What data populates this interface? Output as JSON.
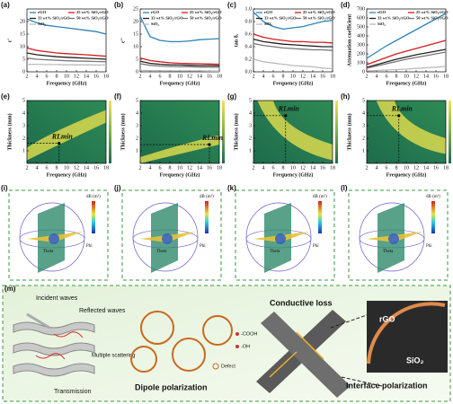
{
  "chart_data": [
    {
      "type": "line",
      "panel": "(a)",
      "xlabel": "Frequency (GHz)",
      "ylabel": "ε'",
      "x": [
        2,
        4,
        6,
        8,
        10,
        12,
        14,
        16,
        18
      ],
      "xlim": [
        2,
        18
      ],
      "xticks": [
        2,
        4,
        6,
        8,
        10,
        12,
        14,
        16,
        18
      ],
      "ylim": [
        0,
        25
      ],
      "yticks": [
        0,
        5,
        10,
        15,
        20
      ],
      "series": [
        {
          "name": "rGO",
          "color": "#2b83ba",
          "values": [
            21,
            19.5,
            18.5,
            18,
            17.5,
            17,
            16.5,
            16,
            15
          ]
        },
        {
          "name": "25 wt% SiO₂/rGO",
          "color": "#d7191c",
          "values": [
            9.5,
            8.5,
            8,
            7.5,
            7.2,
            7,
            6.8,
            6.5,
            6.2
          ]
        },
        {
          "name": "33 wt% SiO₂/rGO",
          "color": "#222222",
          "values": [
            7.5,
            6.8,
            6.4,
            6,
            5.8,
            5.6,
            5.4,
            5.2,
            5
          ]
        },
        {
          "name": "50 wt% SiO₂/rGO",
          "color": "#777777",
          "values": [
            5.5,
            5,
            4.8,
            4.6,
            4.4,
            4.3,
            4.2,
            4.1,
            4
          ]
        },
        {
          "name": "SiO₂",
          "color": "#bbbbbb",
          "values": [
            3,
            3,
            2.9,
            2.9,
            2.8,
            2.8,
            2.8,
            2.7,
            2.7
          ]
        }
      ]
    },
    {
      "type": "line",
      "panel": "(b)",
      "xlabel": "Frequency (GHz)",
      "ylabel": "ε''",
      "x": [
        2,
        4,
        6,
        8,
        10,
        12,
        14,
        16,
        18
      ],
      "xlim": [
        2,
        18
      ],
      "xticks": [
        2,
        4,
        6,
        8,
        10,
        12,
        14,
        16,
        18
      ],
      "ylim": [
        0,
        25
      ],
      "yticks": [
        0,
        5,
        10,
        15,
        20,
        25
      ],
      "series": [
        {
          "name": "rGO",
          "color": "#2b83ba",
          "values": [
            22,
            14,
            12.5,
            12,
            12,
            12.3,
            12.8,
            13,
            13.2
          ]
        },
        {
          "name": "25 wt% SiO₂/rGO",
          "color": "#d7191c",
          "values": [
            5.5,
            4.5,
            4,
            3.6,
            3.4,
            3.3,
            3.2,
            3.1,
            3
          ]
        },
        {
          "name": "33 wt% SiO₂/rGO",
          "color": "#222222",
          "values": [
            4.2,
            3.4,
            3,
            2.8,
            2.7,
            2.6,
            2.5,
            2.5,
            2.4
          ]
        },
        {
          "name": "50 wt% SiO₂/rGO",
          "color": "#777777",
          "values": [
            3.2,
            2.6,
            2.3,
            2.1,
            2,
            2,
            1.9,
            1.9,
            1.8
          ]
        },
        {
          "name": "SiO₂",
          "color": "#bbbbbb",
          "values": [
            0.6,
            0.5,
            0.5,
            0.4,
            0.4,
            0.4,
            0.4,
            0.3,
            0.3
          ]
        }
      ]
    },
    {
      "type": "line",
      "panel": "(c)",
      "xlabel": "Frequency (GHz)",
      "ylabel": "tan δₑ",
      "x": [
        2,
        4,
        6,
        8,
        10,
        12,
        14,
        16,
        18
      ],
      "xlim": [
        2,
        18
      ],
      "xticks": [
        2,
        4,
        6,
        8,
        10,
        12,
        14,
        16,
        18
      ],
      "ylim": [
        0,
        1
      ],
      "yticks": [
        {
          "value": 0,
          "label": "0.0"
        },
        0.2,
        0.4,
        0.6,
        0.8,
        {
          "value": 1,
          "label": "1.0"
        }
      ],
      "series": [
        {
          "name": "rGO",
          "color": "#2b83ba",
          "values": [
            0.95,
            0.8,
            0.72,
            0.68,
            0.7,
            0.72,
            0.76,
            0.8,
            0.82
          ]
        },
        {
          "name": "25 wt% SiO₂/rGO",
          "color": "#d7191c",
          "values": [
            0.6,
            0.55,
            0.52,
            0.5,
            0.48,
            0.48,
            0.47,
            0.47,
            0.46
          ]
        },
        {
          "name": "33 wt% SiO₂/rGO",
          "color": "#222222",
          "values": [
            0.52,
            0.48,
            0.46,
            0.44,
            0.43,
            0.42,
            0.41,
            0.4,
            0.4
          ]
        },
        {
          "name": "50 wt% SiO₂/rGO",
          "color": "#777777",
          "values": [
            0.45,
            0.42,
            0.4,
            0.38,
            0.37,
            0.36,
            0.35,
            0.35,
            0.34
          ]
        },
        {
          "name": "SiO₂",
          "color": "#bbbbbb",
          "values": [
            0.2,
            0.16,
            0.14,
            0.12,
            0.1,
            0.09,
            0.08,
            0.06,
            0.05
          ]
        }
      ]
    },
    {
      "type": "line",
      "panel": "(d)",
      "xlabel": "Frequency (GHz)",
      "ylabel": "Attenuation coefficient",
      "x": [
        2,
        4,
        6,
        8,
        10,
        12,
        14,
        16,
        18
      ],
      "xlim": [
        2,
        18
      ],
      "xticks": [
        2,
        4,
        6,
        8,
        10,
        12,
        14,
        16,
        18
      ],
      "ylim": [
        0,
        700
      ],
      "yticks": [
        0,
        100,
        200,
        300,
        400,
        500,
        600,
        700
      ],
      "series": [
        {
          "name": "rGO",
          "color": "#2b83ba",
          "values": [
            150,
            220,
            290,
            350,
            410,
            470,
            530,
            590,
            650
          ]
        },
        {
          "name": "25 wt% SiO₂/rGO",
          "color": "#d7191c",
          "values": [
            80,
            120,
            160,
            200,
            230,
            260,
            290,
            320,
            350
          ]
        },
        {
          "name": "33 wt% SiO₂/rGO",
          "color": "#222222",
          "values": [
            50,
            80,
            110,
            140,
            165,
            190,
            210,
            230,
            250
          ]
        },
        {
          "name": "50 wt% SiO₂/rGO",
          "color": "#777777",
          "values": [
            40,
            65,
            90,
            115,
            140,
            160,
            180,
            200,
            220
          ]
        },
        {
          "name": "SiO₂",
          "color": "#bbbbbb",
          "values": [
            10,
            15,
            20,
            25,
            30,
            38,
            45,
            52,
            60
          ]
        }
      ]
    },
    {
      "type": "heatmap",
      "panel": "(e)",
      "xlabel": "Frequency (GHz)",
      "ylabel": "Thickness (mm)",
      "xlim": [
        2,
        18
      ],
      "xticks": [
        2,
        4,
        6,
        8,
        10,
        12,
        14,
        16,
        18
      ],
      "ylim": [
        0,
        5
      ],
      "yticks": [
        1,
        2,
        3,
        4,
        5
      ],
      "marker": {
        "label": "RLmin",
        "x": 8.5,
        "y": 1.6
      }
    },
    {
      "type": "heatmap",
      "panel": "(f)",
      "xlabel": "Frequency (GHz)",
      "ylabel": "Thickness (mm)",
      "xlim": [
        2,
        18
      ],
      "xticks": [
        2,
        4,
        6,
        8,
        10,
        12,
        14,
        16,
        18
      ],
      "ylim": [
        0,
        5
      ],
      "yticks": [
        1,
        2,
        3,
        4,
        5
      ],
      "marker": {
        "label": "RLmin",
        "x": 16,
        "y": 1.5
      }
    },
    {
      "type": "heatmap",
      "panel": "(g)",
      "xlabel": "Frequency (GHz)",
      "ylabel": "Thickness (mm)",
      "xlim": [
        2,
        18
      ],
      "xticks": [
        2,
        4,
        6,
        8,
        10,
        12,
        14,
        16,
        18
      ],
      "ylim": [
        0,
        5
      ],
      "yticks": [
        1,
        2,
        3,
        4,
        5
      ],
      "marker": {
        "label": "RLmin",
        "x": 8.5,
        "y": 3.8
      }
    },
    {
      "type": "heatmap",
      "panel": "(h)",
      "xlabel": "Frequency (GHz)",
      "ylabel": "Thickness (mm)",
      "xlim": [
        2,
        18
      ],
      "xticks": [
        2,
        4,
        6,
        8,
        10,
        12,
        14,
        16,
        18
      ],
      "ylim": [
        0,
        5
      ],
      "yticks": [
        1,
        2,
        3,
        4,
        5
      ],
      "marker": {
        "label": "RLmin",
        "x": 8.5,
        "y": 3.8
      }
    }
  ],
  "rcs": {
    "panels": [
      "(i)",
      "(j)",
      "(k)",
      "(l)"
    ],
    "unit": "dB (m²)",
    "theta": "Theta",
    "phi": "Phi"
  },
  "mechanism": {
    "panel": "(m)",
    "incident": "Incident waves",
    "reflected": "Reflected waves",
    "scattering": "Multiple scattering",
    "transmission": "Transmission",
    "dipole": "Dipole polarization",
    "cooh": "-COOH",
    "oh": "-OH",
    "defect": "Defect",
    "conductive": "Conductive loss",
    "interface": "Interface polarization",
    "rgo": "rGO",
    "sio2": "SiO₂"
  }
}
